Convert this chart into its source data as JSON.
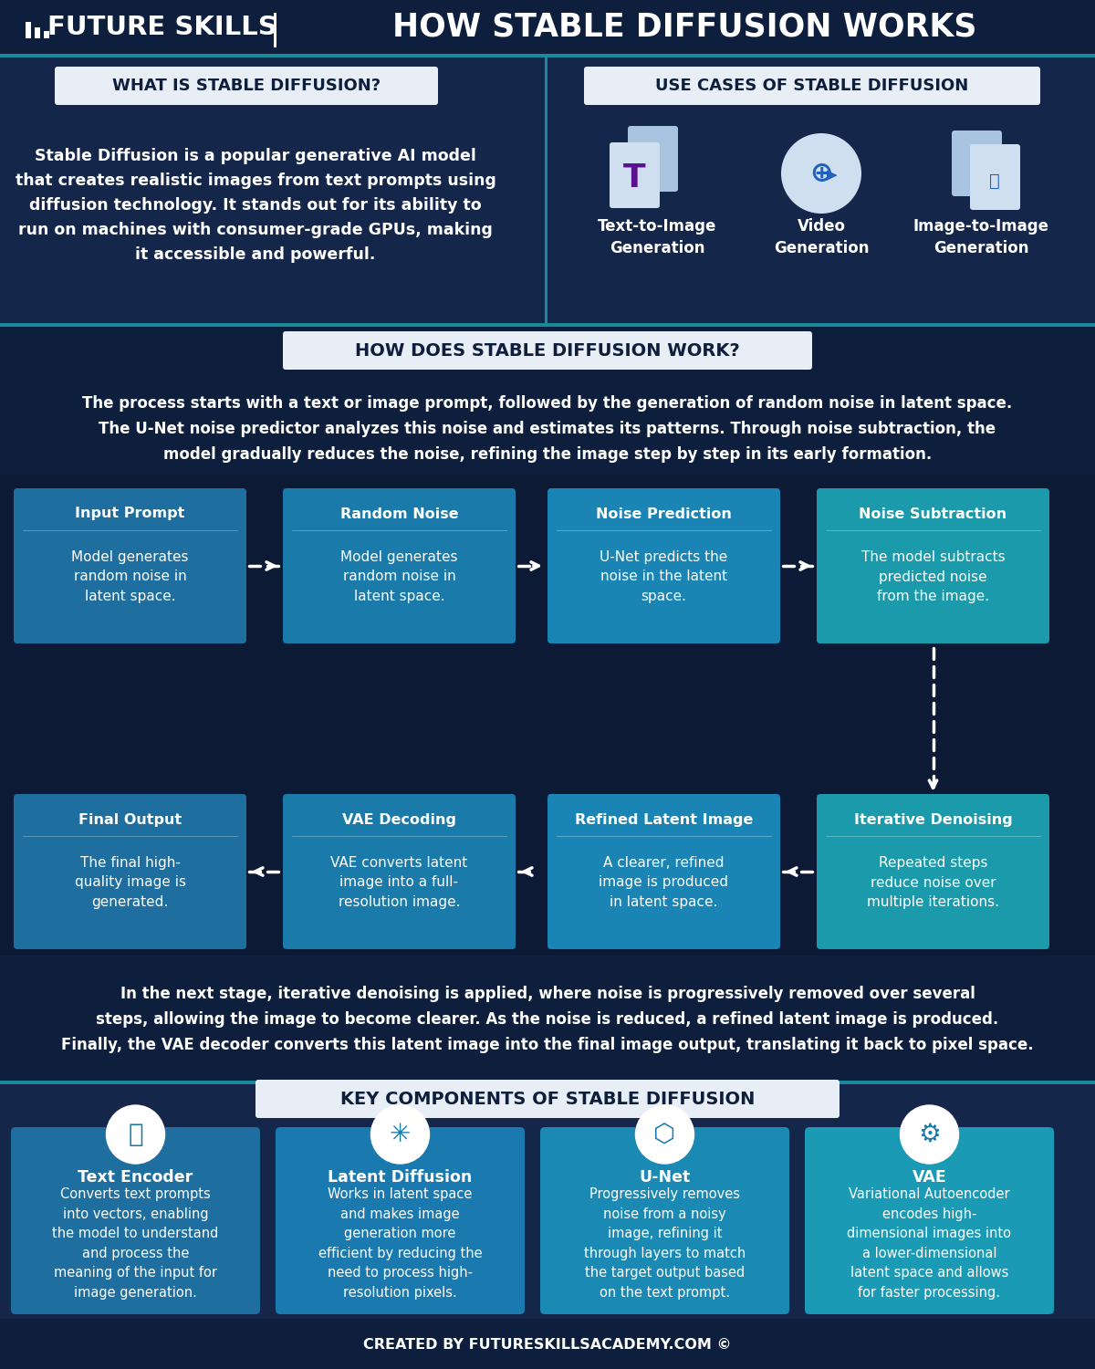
{
  "bg_dark": "#0d1f3c",
  "bg_section": "#112244",
  "bg_mid": "#1a3060",
  "teal_line": "#1a8a9a",
  "box_blue1": "#1e6fa0",
  "box_blue2": "#1a7aaa",
  "box_blue3": "#1a85b5",
  "box_blue4": "#1a9aaa",
  "comp_blue1": "#1e6fa0",
  "comp_blue2": "#1a7ab0",
  "comp_blue3": "#1a8ab5",
  "comp_blue4": "#1a9ab5",
  "white": "#ffffff",
  "white_box": "#e8eef5",
  "title": "HOW STABLE DIFFUSION WORKS",
  "brand": "FUTURE SKILLS",
  "section1_title": "WHAT IS STABLE DIFFUSION?",
  "section1_text": "Stable Diffusion is a popular generative AI model\nthat creates realistic images from text prompts using\ndiffusion technology. It stands out for its ability to\nrun on machines with consumer-grade GPUs, making\nit accessible and powerful.",
  "section2_title": "USE CASES OF STABLE DIFFUSION",
  "use_cases": [
    "Text-to-Image\nGeneration",
    "Video\nGeneration",
    "Image-to-Image\nGeneration"
  ],
  "how_title": "HOW DOES STABLE DIFFUSION WORK?",
  "how_text": "The process starts with a text or image prompt, followed by the generation of random noise in latent space.\nThe U-Net noise predictor analyzes this noise and estimates its patterns. Through noise subtraction, the\nmodel gradually reduces the noise, refining the image step by step in its early formation.",
  "flow_row1": [
    {
      "title": "Input Prompt",
      "body": "Model generates\nrandom noise in\nlatent space."
    },
    {
      "title": "Random Noise",
      "body": "Model generates\nrandom noise in\nlatent space."
    },
    {
      "title": "Noise Prediction",
      "body": "U-Net predicts the\nnoise in the latent\nspace."
    },
    {
      "title": "Noise Subtraction",
      "body": "The model subtracts\npredicted noise\nfrom the image."
    }
  ],
  "flow_row2": [
    {
      "title": "Final Output",
      "body": "The final high-\nquality image is\ngenerated."
    },
    {
      "title": "VAE Decoding",
      "body": "VAE converts latent\nimage into a full-\nresolution image."
    },
    {
      "title": "Refined Latent Image",
      "body": "A clearer, refined\nimage is produced\nin latent space."
    },
    {
      "title": "Iterative Denoising",
      "body": "Repeated steps\nreduce noise over\nmultiple iterations."
    }
  ],
  "bottom_text": "In the next stage, iterative denoising is applied, where noise is progressively removed over several\nsteps, allowing the image to become clearer. As the noise is reduced, a refined latent image is produced.\nFinally, the VAE decoder converts this latent image into the final image output, translating it back to pixel space.",
  "key_title": "KEY COMPONENTS OF STABLE DIFFUSION",
  "components": [
    {
      "title": "Text Encoder",
      "body": "Converts text prompts\ninto vectors, enabling\nthe model to understand\nand process the\nmeaning of the input for\nimage generation."
    },
    {
      "title": "Latent Diffusion",
      "body": "Works in latent space\nand makes image\ngeneration more\nefficient by reducing the\nneed to process high-\nresolution pixels."
    },
    {
      "title": "U-Net",
      "body": "Progressively removes\nnoise from a noisy\nimage, refining it\nthrough layers to match\nthe target output based\non the text prompt."
    },
    {
      "title": "VAE",
      "body": "Variational Autoencoder\nencodes high-\ndimensional images into\na lower-dimensional\nlatent space and allows\nfor faster processing."
    }
  ],
  "footer": "CREATED BY FUTURESKILLSACADEMY.COM ©"
}
